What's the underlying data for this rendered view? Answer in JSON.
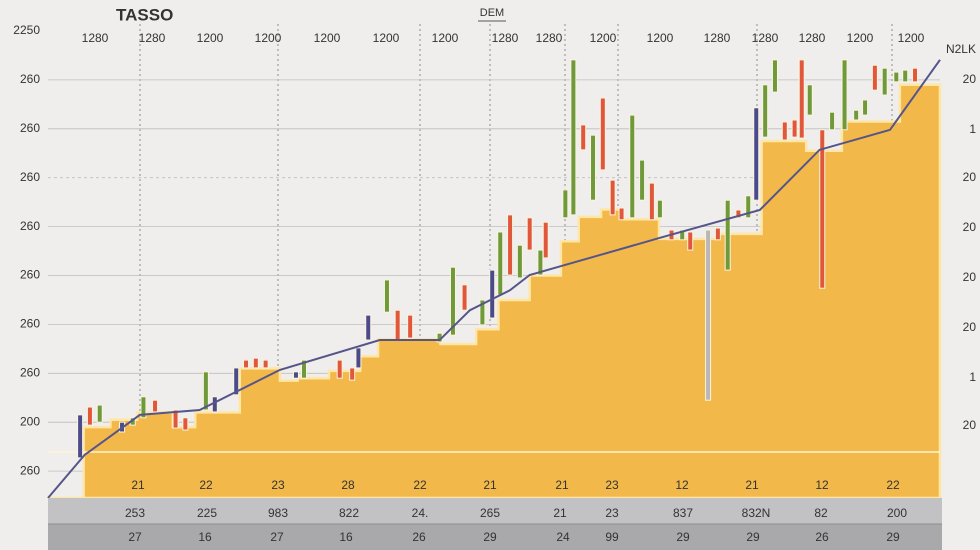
{
  "chart_data": {
    "type": "candlestick",
    "title": "TASSO",
    "subtitle": "DEM",
    "top_labels": [
      "1280",
      "1280",
      "1200",
      "1200",
      "1200",
      "1200",
      "1200",
      "1280",
      "1280",
      "1200",
      "1200",
      "1280",
      "1280",
      "1280",
      "1200",
      "1200"
    ],
    "right_labels": [
      "N2LK",
      "20",
      "1",
      "20",
      "20",
      "20",
      "20",
      "1",
      "20"
    ],
    "bottom_labels": [
      "21",
      "22",
      "23",
      "28",
      "22",
      "21",
      "21",
      "23",
      "12",
      "21",
      "12",
      "22"
    ],
    "footer_row1": [
      "253",
      "225",
      "983",
      "822",
      "24.",
      "265",
      "21",
      "23",
      "837",
      "832N",
      "82",
      "200"
    ],
    "footer_row2": [
      "27",
      "16",
      "27",
      "16",
      "26",
      "29",
      "24",
      "99",
      "29",
      "29",
      "26",
      "29"
    ],
    "xlim": [
      0,
      100
    ],
    "ylim": [
      0.45,
      10
    ],
    "yticks": [
      {
        "value": 10,
        "label": "2250"
      },
      {
        "value": 9,
        "label": "260"
      },
      {
        "value": 8,
        "label": "260"
      },
      {
        "value": 7,
        "label": "260"
      },
      {
        "value": 6,
        "label": "260"
      },
      {
        "value": 5,
        "label": "260"
      },
      {
        "value": 4,
        "label": "260"
      },
      {
        "value": 3,
        "label": "260"
      },
      {
        "value": 2,
        "label": "200"
      },
      {
        "value": 1,
        "label": "260"
      }
    ],
    "grid": true,
    "area": {
      "color": "#f3b84a",
      "x": [
        0,
        4,
        7,
        10,
        14,
        16.5,
        21.5,
        26,
        28,
        31.5,
        35,
        37,
        44,
        48,
        50.5,
        54,
        57.5,
        59.5,
        62,
        64.5,
        68.5,
        72,
        75,
        80,
        85,
        89,
        95.5
      ],
      "values": [
        0.45,
        1.9,
        2.05,
        2.2,
        1.9,
        2.2,
        3.1,
        2.85,
        2.9,
        3.05,
        3.35,
        3.7,
        3.6,
        3.9,
        4.5,
        5.0,
        5.7,
        6.2,
        6.35,
        6.15,
        5.75,
        5.75,
        5.85,
        7.75,
        7.55,
        8.15,
        8.9
      ]
    },
    "line": {
      "color": "#55558a",
      "x": [
        0,
        4.1,
        10.3,
        17,
        26,
        37.2,
        43.9,
        47.3,
        51.8,
        54,
        61.9,
        68.6,
        79.8,
        86.5,
        94.4,
        100
      ],
      "values": [
        0.45,
        1.33,
        2.15,
        2.25,
        3.07,
        3.68,
        3.68,
        4.29,
        4.7,
        5.01,
        5.42,
        5.77,
        6.34,
        7.57,
        7.98,
        9.41
      ]
    },
    "candles": {
      "x": [
        3.6,
        4.7,
        5.8,
        8.3,
        9.5,
        10.7,
        12.0,
        14.3,
        15.4,
        17.7,
        18.7,
        21.1,
        22.2,
        23.3,
        24.4,
        27.8,
        28.7,
        32.7,
        34.1,
        34.8,
        35.9,
        38.0,
        39.2,
        40.6,
        43.9,
        45.4,
        46.7,
        48.7,
        49.8,
        50.7,
        51.8,
        52.9,
        54.0,
        55.2,
        55.8,
        58.0,
        58.9,
        60.0,
        61.1,
        62.2,
        63.3,
        64.3,
        65.5,
        66.6,
        67.7,
        68.6,
        69.9,
        71.1,
        72.0,
        74.0,
        75.1,
        76.2,
        77.4,
        78.5,
        79.4,
        80.4,
        81.5,
        82.6,
        83.7,
        84.5,
        85.4,
        86.8,
        87.9,
        89.3,
        90.6,
        91.6,
        92.7,
        93.8,
        95.1,
        96.1,
        97.2
      ],
      "low": [
        1.27,
        1.94,
        2.0,
        1.8,
        1.94,
        2.09,
        2.21,
        1.88,
        1.84,
        2.25,
        2.21,
        2.56,
        3.11,
        3.11,
        3.11,
        2.9,
        2.9,
        2.9,
        2.86,
        3.11,
        3.68,
        4.25,
        3.68,
        3.72,
        3.64,
        3.78,
        4.29,
        3.99,
        4.13,
        4.6,
        5.01,
        4.95,
        5.52,
        5.01,
        5.36,
        6.18,
        6.24,
        7.57,
        6.54,
        7.16,
        6.24,
        6.14,
        6.18,
        6.54,
        6.14,
        6.18,
        5.73,
        5.73,
        5.52,
        2.45,
        5.73,
        5.11,
        6.18,
        6.18,
        6.54,
        7.83,
        8.75,
        7.77,
        7.83,
        7.81,
        8.28,
        4.74,
        7.98,
        7.98,
        8.18,
        8.28,
        8.79,
        8.69,
        8.96,
        8.96,
        8.96
      ],
      "high": [
        2.15,
        2.31,
        2.35,
        2.0,
        2.09,
        2.52,
        2.45,
        2.25,
        2.09,
        3.03,
        2.52,
        3.11,
        3.27,
        3.31,
        3.27,
        3.03,
        3.27,
        3.27,
        3.11,
        3.52,
        4.19,
        4.91,
        4.29,
        4.19,
        3.82,
        5.17,
        4.81,
        4.5,
        5.11,
        5.89,
        6.24,
        5.62,
        6.18,
        5.52,
        6.09,
        6.75,
        9.41,
        8.08,
        7.87,
        8.63,
        6.95,
        6.38,
        8.28,
        7.36,
        6.89,
        6.54,
        5.93,
        5.93,
        5.89,
        5.93,
        5.97,
        6.54,
        6.34,
        6.63,
        8.43,
        8.9,
        9.41,
        8.14,
        8.18,
        9.41,
        8.9,
        7.98,
        8.34,
        9.41,
        8.38,
        8.59,
        9.3,
        9.24,
        9.16,
        9.2,
        9.24
      ],
      "colors": [
        "#4b4b8c",
        "#e0573c",
        "#6e9a3c",
        "#4b4b8c",
        "#6e9a3c",
        "#6e9a3c",
        "#e0573c",
        "#e0573c",
        "#e0573c",
        "#6e9a3c",
        "#4b4b8c",
        "#4b4b8c",
        "#e0573c",
        "#e0573c",
        "#e0573c",
        "#4b4b8c",
        "#6e9a3c",
        "#e0573c",
        "#e0573c",
        "#4b4b8c",
        "#4b4b8c",
        "#6e9a3c",
        "#e0573c",
        "#e0573c",
        "#6e9a3c",
        "#6e9a3c",
        "#e0573c",
        "#6e9a3c",
        "#4b4b8c",
        "#6e9a3c",
        "#e0573c",
        "#6e9a3c",
        "#e0573c",
        "#6e9a3c",
        "#e0573c",
        "#6e9a3c",
        "#6e9a3c",
        "#e0573c",
        "#6e9a3c",
        "#e0573c",
        "#e0573c",
        "#e0573c",
        "#6e9a3c",
        "#6e9a3c",
        "#e0573c",
        "#6e9a3c",
        "#e0573c",
        "#6e9a3c",
        "#e0573c",
        "#b8b8b8",
        "#e0573c",
        "#6e9a3c",
        "#e0573c",
        "#6e9a3c",
        "#4b4b8c",
        "#6e9a3c",
        "#6e9a3c",
        "#e0573c",
        "#e0573c",
        "#e0573c",
        "#6e9a3c",
        "#e0573c",
        "#6e9a3c",
        "#6e9a3c",
        "#6e9a3c",
        "#6e9a3c",
        "#e0573c",
        "#6e9a3c",
        "#6e9a3c",
        "#6e9a3c",
        "#e0573c"
      ]
    }
  }
}
